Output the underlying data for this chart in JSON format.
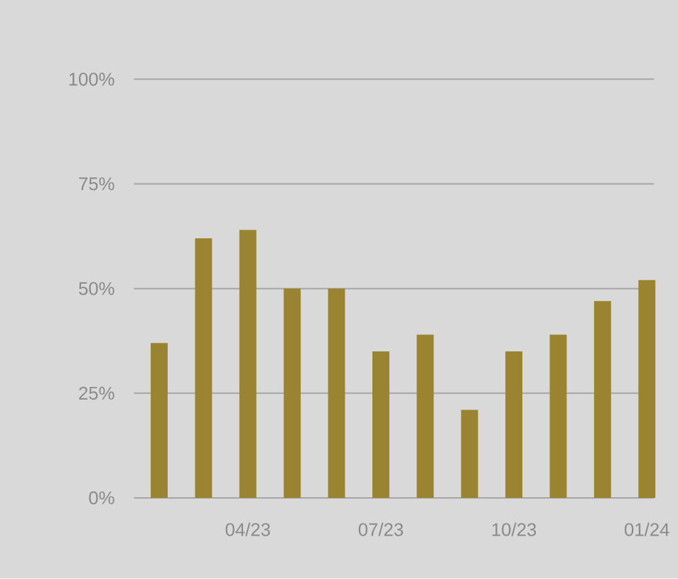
{
  "chart_data": {
    "type": "bar",
    "categories": [
      null,
      null,
      "04/23",
      null,
      null,
      "07/23",
      null,
      null,
      "10/23",
      null,
      null,
      "01/24"
    ],
    "values": [
      37,
      62,
      64,
      50,
      50,
      35,
      39,
      21,
      35,
      39,
      47,
      52
    ],
    "color": "#9a8431",
    "ylim": [
      0,
      100
    ],
    "yticks": [
      {
        "value": 0,
        "label": "0%"
      },
      {
        "value": 25,
        "label": "25%"
      },
      {
        "value": 50,
        "label": "50%"
      },
      {
        "value": 75,
        "label": "75%"
      },
      {
        "value": 100,
        "label": "100%"
      }
    ],
    "grid": "y"
  }
}
